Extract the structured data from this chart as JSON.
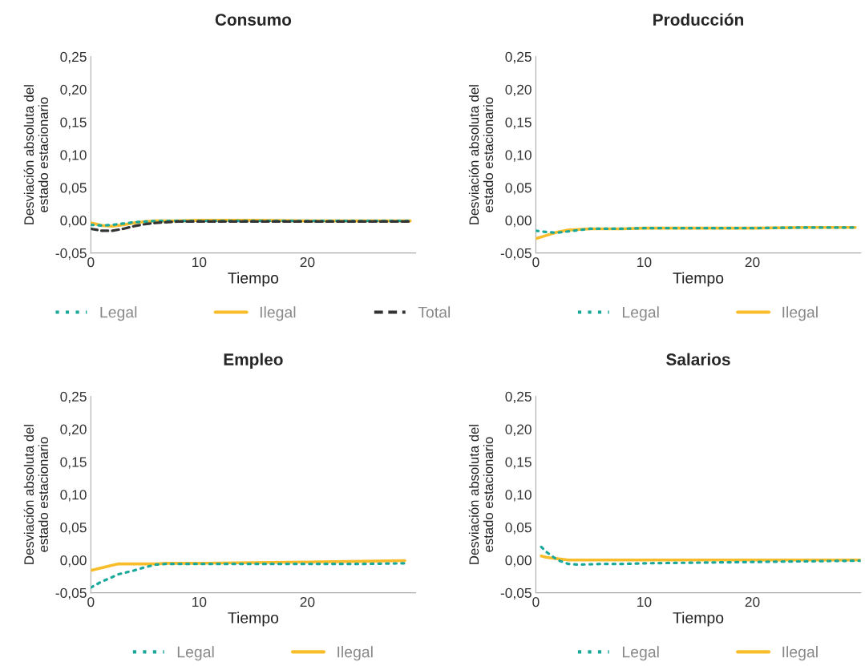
{
  "chart_data": [
    {
      "type": "line",
      "title": "Consumo",
      "xlabel": "Tiempo",
      "ylabel": "Desviación absoluta del\nestado estacionario",
      "xlim": [
        0,
        30
      ],
      "ylim": [
        -0.05,
        0.25
      ],
      "xticks": [
        0,
        10,
        20
      ],
      "yticks": [
        {
          "value": -0.05,
          "label": "-0,05"
        },
        {
          "value": 0,
          "label": "0,00"
        },
        {
          "value": 0.05,
          "label": "0,05"
        },
        {
          "value": 0.1,
          "label": "0,10"
        },
        {
          "value": 0.15,
          "label": "0,15"
        },
        {
          "value": 0.2,
          "label": "0,20"
        },
        {
          "value": 0.25,
          "label": "0,25"
        }
      ],
      "grid": false,
      "legend": "bottom",
      "x": [
        0,
        1,
        2,
        3,
        4,
        5,
        6,
        8,
        10,
        15,
        20,
        25,
        29.5
      ],
      "series": [
        {
          "name": "Legal",
          "color": "#1aa89a",
          "line_style": "dotted",
          "values": [
            -0.007,
            -0.008,
            -0.007,
            -0.005,
            -0.003,
            -0.002,
            -0.001,
            -0.001,
            -0.001,
            -0.001,
            -0.001,
            -0.001,
            -0.001
          ]
        },
        {
          "name": "Ilegal",
          "color": "#f9bd2b",
          "line_style": "solid",
          "values": [
            -0.004,
            -0.008,
            -0.009,
            -0.007,
            -0.004,
            -0.002,
            -0.001,
            -0.001,
            0.0,
            0.0,
            -0.001,
            -0.001,
            -0.001
          ]
        },
        {
          "name": "Total",
          "color": "#333333",
          "line_style": "dashed",
          "values": [
            -0.013,
            -0.016,
            -0.016,
            -0.013,
            -0.009,
            -0.006,
            -0.004,
            -0.002,
            -0.002,
            -0.002,
            -0.002,
            -0.002,
            -0.002
          ]
        }
      ]
    },
    {
      "type": "line",
      "title": "Producción",
      "xlabel": "Tiempo",
      "ylabel": "Desviación absoluta del\nestado estacionario",
      "xlim": [
        0,
        30
      ],
      "ylim": [
        -0.05,
        0.25
      ],
      "xticks": [
        0,
        10,
        20
      ],
      "yticks": [
        {
          "value": -0.05,
          "label": "-0,05"
        },
        {
          "value": 0,
          "label": "0,00"
        },
        {
          "value": 0.05,
          "label": "0,05"
        },
        {
          "value": 0.1,
          "label": "0,10"
        },
        {
          "value": 0.15,
          "label": "0,15"
        },
        {
          "value": 0.2,
          "label": "0,20"
        },
        {
          "value": 0.25,
          "label": "0,25"
        }
      ],
      "grid": false,
      "legend": "bottom",
      "x": [
        0,
        1,
        2,
        3,
        4,
        5,
        6,
        8,
        10,
        15,
        20,
        25,
        29.5
      ],
      "series": [
        {
          "name": "Legal",
          "color": "#1aa89a",
          "line_style": "dotted",
          "values": [
            -0.016,
            -0.018,
            -0.019,
            -0.017,
            -0.015,
            -0.013,
            -0.013,
            -0.013,
            -0.012,
            -0.012,
            -0.012,
            -0.011,
            -0.011
          ]
        },
        {
          "name": "Ilegal",
          "color": "#f9bd2b",
          "line_style": "solid",
          "values": [
            -0.028,
            -0.023,
            -0.018,
            -0.015,
            -0.014,
            -0.013,
            -0.013,
            -0.013,
            -0.012,
            -0.012,
            -0.012,
            -0.011,
            -0.011
          ]
        }
      ]
    },
    {
      "type": "line",
      "title": "Empleo",
      "xlabel": "Tiempo",
      "ylabel": "Desviación absoluta del\nestado estacionario",
      "xlim": [
        0,
        30
      ],
      "ylim": [
        -0.05,
        0.25
      ],
      "xticks": [
        0,
        10,
        20
      ],
      "yticks": [
        {
          "value": -0.05,
          "label": "-0,05"
        },
        {
          "value": 0,
          "label": "0,00"
        },
        {
          "value": 0.05,
          "label": "0,05"
        },
        {
          "value": 0.1,
          "label": "0,10"
        },
        {
          "value": 0.15,
          "label": "0,15"
        },
        {
          "value": 0.2,
          "label": "0,20"
        },
        {
          "value": 0.25,
          "label": "0,25"
        }
      ],
      "grid": false,
      "legend": "bottom",
      "x": [
        0,
        1,
        2,
        2.5,
        4,
        5,
        6,
        7,
        10,
        15,
        20,
        25,
        29
      ],
      "series": [
        {
          "name": "Legal",
          "color": "#1aa89a",
          "line_style": "dotted",
          "values": [
            -0.042,
            -0.033,
            -0.026,
            -0.022,
            -0.016,
            -0.011,
            -0.007,
            -0.006,
            -0.006,
            -0.006,
            -0.006,
            -0.006,
            -0.005
          ]
        },
        {
          "name": "Ilegal",
          "color": "#f9bd2b",
          "line_style": "solid",
          "values": [
            -0.016,
            -0.012,
            -0.008,
            -0.006,
            -0.006,
            -0.006,
            -0.006,
            -0.005,
            -0.005,
            -0.004,
            -0.003,
            -0.002,
            -0.001
          ]
        }
      ]
    },
    {
      "type": "line",
      "title": "Salarios",
      "xlabel": "Tiempo",
      "ylabel": "Desviación absoluta del\nestado estacionario",
      "xlim": [
        0,
        30
      ],
      "ylim": [
        -0.05,
        0.25
      ],
      "xticks": [
        0,
        10,
        20
      ],
      "yticks": [
        {
          "value": -0.05,
          "label": "-0,05"
        },
        {
          "value": 0,
          "label": "0,00"
        },
        {
          "value": 0.05,
          "label": "0,05"
        },
        {
          "value": 0.1,
          "label": "0,10"
        },
        {
          "value": 0.15,
          "label": "0,15"
        },
        {
          "value": 0.2,
          "label": "0,20"
        },
        {
          "value": 0.25,
          "label": "0,25"
        }
      ],
      "grid": false,
      "legend": "bottom",
      "x": [
        0.5,
        1,
        2,
        3,
        4,
        6,
        8,
        10,
        15,
        20,
        25,
        30
      ],
      "series": [
        {
          "name": "Legal",
          "color": "#1aa89a",
          "line_style": "dotted",
          "values": [
            0.02,
            0.012,
            0.0,
            -0.006,
            -0.007,
            -0.006,
            -0.006,
            -0.005,
            -0.004,
            -0.003,
            -0.002,
            -0.001
          ]
        },
        {
          "name": "Ilegal",
          "color": "#f9bd2b",
          "line_style": "solid",
          "values": [
            0.006,
            0.004,
            0.002,
            0.0,
            0.0,
            0.0,
            0.0,
            0.0,
            0.0,
            0.0,
            0.0,
            0.0
          ]
        }
      ]
    }
  ]
}
